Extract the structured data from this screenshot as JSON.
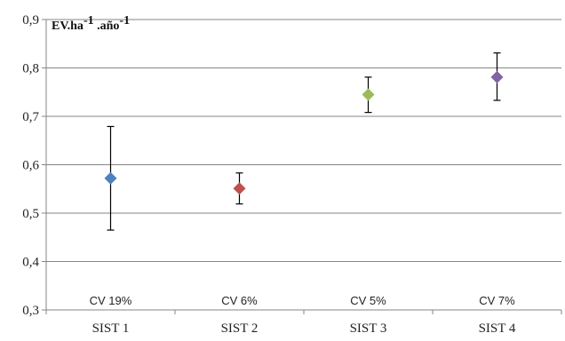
{
  "chart_data": {
    "type": "scatter",
    "title": "",
    "ylabel": "EV.ha-1 .año-1",
    "ylabel_parts": [
      "EV.ha",
      "-1",
      " .año",
      "-1"
    ],
    "xlabel": "",
    "categories": [
      "SIST 1",
      "SIST 2",
      "SIST 3",
      "SIST 4"
    ],
    "values": [
      0.572,
      0.551,
      0.745,
      0.781
    ],
    "error_low": [
      0.465,
      0.519,
      0.708,
      0.733
    ],
    "error_high": [
      0.679,
      0.583,
      0.781,
      0.831
    ],
    "annotations": [
      "CV 19%",
      "CV 6%",
      "CV 5%",
      "CV 7%"
    ],
    "ylim": [
      0.3,
      0.9
    ],
    "yticks": [
      "0,3",
      "0,4",
      "0,5",
      "0,6",
      "0,7",
      "0,8",
      "0,9"
    ],
    "grid": true,
    "legend": "none",
    "colors": [
      "#4f81bd",
      "#c0504d",
      "#9bbb59",
      "#8064a2"
    ]
  }
}
